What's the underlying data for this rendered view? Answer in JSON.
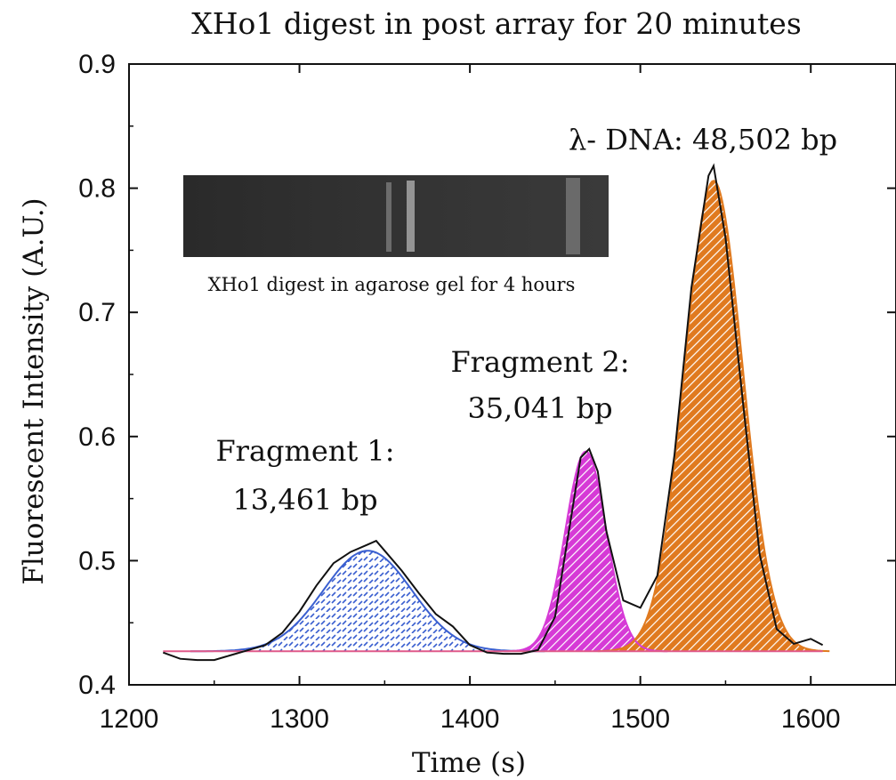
{
  "chart_data": {
    "type": "area",
    "title": "XHo1 digest in post array for 20 minutes",
    "xlabel": "Time (s)",
    "ylabel": "Fluorescent Intensity (A.U.)",
    "xlim": [
      1200,
      1650
    ],
    "ylim": [
      0.4,
      0.9
    ],
    "x_ticks": [
      1200,
      1300,
      1400,
      1500,
      1600
    ],
    "y_ticks": [
      0.4,
      0.5,
      0.6,
      0.7,
      0.8,
      0.9
    ],
    "x_tick_labels": [
      "1200",
      "1300",
      "1400",
      "1500",
      "1600"
    ],
    "y_tick_labels": [
      "0.4",
      "0.5",
      "0.6",
      "0.7",
      "0.8",
      "0.9"
    ],
    "grid": false,
    "baseline": 0.427,
    "inset": {
      "caption": "XHo1 digest in agarose gel for 4 hours"
    },
    "peaks": [
      {
        "name_line1": "Fragment 1:",
        "name_line2": "13,461 bp",
        "center": 1340,
        "peak": 0.508,
        "sigma": 26,
        "color": "#3a5fd0",
        "fill_pattern": "dashes"
      },
      {
        "name_line1": "Fragment 2:",
        "name_line2": "35,041 bp",
        "center": 1468,
        "peak": 0.588,
        "sigma": 12,
        "color": "#d63ad6",
        "fill_pattern": "hatch"
      },
      {
        "name_line1": "λ- DNA: 48,502 bp",
        "name_line2": "",
        "center": 1543,
        "peak": 0.806,
        "sigma": 17,
        "color": "#e07a1f",
        "fill_pattern": "hatch"
      }
    ],
    "measured_series": {
      "x": [
        1220,
        1230,
        1240,
        1250,
        1260,
        1270,
        1280,
        1290,
        1300,
        1310,
        1320,
        1330,
        1340,
        1345,
        1350,
        1360,
        1370,
        1380,
        1390,
        1400,
        1410,
        1420,
        1430,
        1440,
        1450,
        1460,
        1465,
        1470,
        1475,
        1480,
        1490,
        1500,
        1510,
        1520,
        1530,
        1540,
        1543,
        1550,
        1560,
        1570,
        1580,
        1590,
        1600,
        1607
      ],
      "y": [
        0.426,
        0.421,
        0.42,
        0.42,
        0.424,
        0.428,
        0.432,
        0.442,
        0.459,
        0.48,
        0.498,
        0.507,
        0.513,
        0.516,
        0.508,
        0.492,
        0.474,
        0.457,
        0.447,
        0.432,
        0.426,
        0.425,
        0.425,
        0.428,
        0.455,
        0.54,
        0.583,
        0.59,
        0.572,
        0.524,
        0.468,
        0.462,
        0.488,
        0.585,
        0.72,
        0.81,
        0.818,
        0.76,
        0.63,
        0.505,
        0.445,
        0.433,
        0.437,
        0.432
      ]
    }
  }
}
